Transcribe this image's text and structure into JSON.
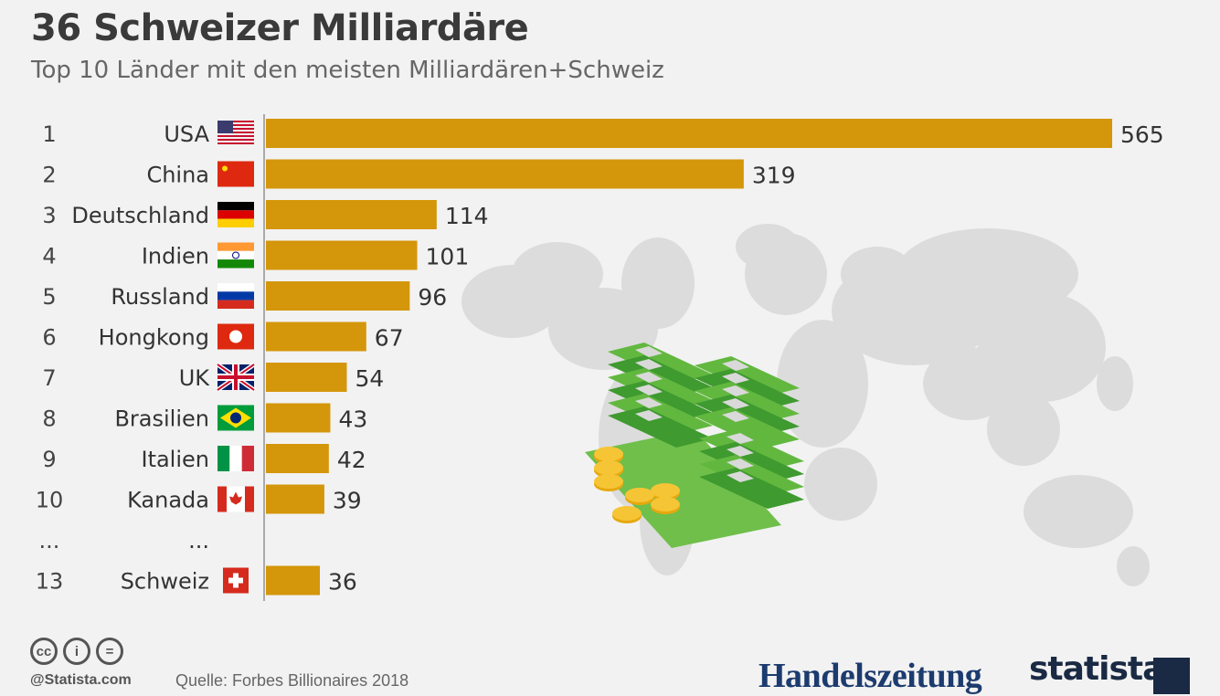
{
  "title": "36 Schweizer Milliardäre",
  "subtitle": "Top 10 Länder mit den meisten Milliardären+Schweiz",
  "colors": {
    "bar": "#d4960a",
    "text": "#333333",
    "map": "#dcdcdc"
  },
  "chart_data": {
    "type": "bar",
    "orientation": "horizontal",
    "title": "36 Schweizer Milliardäre",
    "subtitle": "Top 10 Länder mit den meisten Milliardären+Schweiz",
    "xlim": [
      0,
      565
    ],
    "grid": false,
    "rows": [
      {
        "rank": "1",
        "category": "USA",
        "value": 565,
        "value_label": "565",
        "flag": "us-flag"
      },
      {
        "rank": "2",
        "category": "China",
        "value": 319,
        "value_label": "319",
        "flag": "cn-flag"
      },
      {
        "rank": "3",
        "category": "Deutschland",
        "value": 114,
        "value_label": "114",
        "flag": "de-flag"
      },
      {
        "rank": "4",
        "category": "Indien",
        "value": 101,
        "value_label": "101",
        "flag": "in-flag"
      },
      {
        "rank": "5",
        "category": "Russland",
        "value": 96,
        "value_label": "96",
        "flag": "ru-flag"
      },
      {
        "rank": "6",
        "category": "Hongkong",
        "value": 67,
        "value_label": "67",
        "flag": "hk-flag"
      },
      {
        "rank": "7",
        "category": "UK",
        "value": 54,
        "value_label": "54",
        "flag": "uk-flag"
      },
      {
        "rank": "8",
        "category": "Brasilien",
        "value": 43,
        "value_label": "43",
        "flag": "br-flag"
      },
      {
        "rank": "9",
        "category": "Italien",
        "value": 42,
        "value_label": "42",
        "flag": "it-flag"
      },
      {
        "rank": "10",
        "category": "Kanada",
        "value": 39,
        "value_label": "39",
        "flag": "ca-flag"
      },
      {
        "rank": "...",
        "category": "...",
        "value": null,
        "value_label": "",
        "flag": ""
      },
      {
        "rank": "13",
        "category": "Schweiz",
        "value": 36,
        "value_label": "36",
        "flag": "ch-flag"
      }
    ]
  },
  "footer": {
    "license_icons": [
      "cc-icon",
      "by-icon",
      "nd-icon"
    ],
    "license_glyphs": [
      "cc",
      "i",
      "="
    ],
    "credit": "@Statista.com",
    "source": "Quelle: Forbes Billionaires 2018",
    "brand_handelszeitung": "Handelszeitung",
    "brand_statista": "statista"
  }
}
